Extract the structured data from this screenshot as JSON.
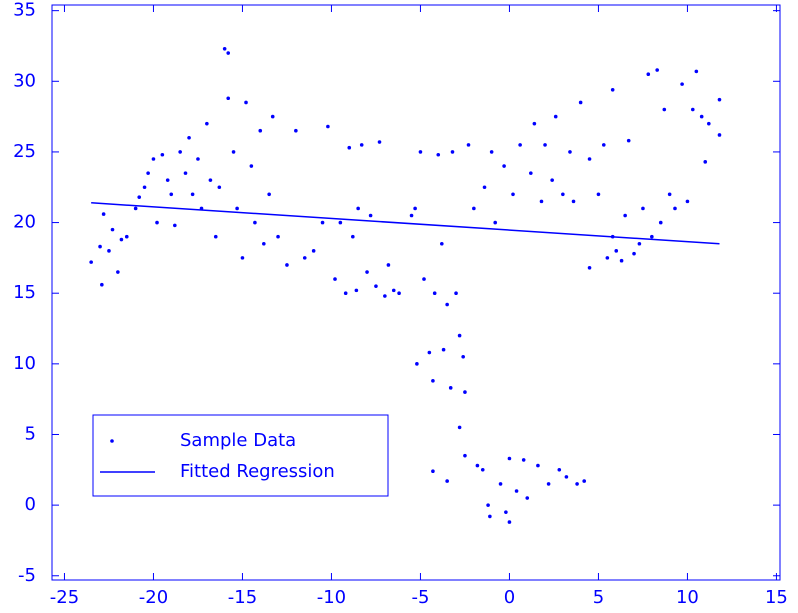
{
  "chart_data": {
    "type": "scatter",
    "xlim": [
      -25.7,
      15.2
    ],
    "ylim": [
      -5.3,
      35.4
    ],
    "xticks": [
      -25,
      -20,
      -15,
      -10,
      -5,
      0,
      5,
      10,
      15
    ],
    "yticks": [
      -5,
      0,
      5,
      10,
      15,
      20,
      25,
      30,
      35
    ],
    "axis_color": "#0000ff",
    "legend": "lower left",
    "series": [
      {
        "name": "Sample Data",
        "color": "#0000ff",
        "mode": "markers",
        "x": [
          -23.5,
          -23,
          -22.9,
          -22.8,
          -22.5,
          -22.3,
          -22,
          -21.8,
          -21.5,
          -21,
          -20.8,
          -20.5,
          -20.3,
          -20,
          -19.8,
          -19.5,
          -19.2,
          -19,
          -18.8,
          -18.5,
          -18.2,
          -18,
          -17.8,
          -17.5,
          -17.3,
          -17,
          -16.8,
          -16.5,
          -16.3,
          -16,
          -15.8,
          -15.8,
          -15.5,
          -15.3,
          -15,
          -14.8,
          -14.5,
          -14.3,
          -14,
          -13.8,
          -13.5,
          -13.3,
          -13,
          -12.5,
          -12,
          -11.5,
          -11,
          -10.5,
          -10.2,
          -9.8,
          -9.5,
          -9.2,
          -9,
          -8.8,
          -8.6,
          -8.5,
          -8.3,
          -8,
          -7.8,
          -7.5,
          -7.3,
          -7,
          -6.8,
          -6.5,
          -6.2,
          -5.5,
          -5.3,
          -5.2,
          -5,
          -4.8,
          -4.5,
          -4.3,
          -4.2,
          -4,
          -3.8,
          -3.7,
          -3.5,
          -3.3,
          -3.2,
          -3,
          -2.8,
          -2.8,
          -2.6,
          -2.5,
          -2.5,
          -2.3,
          -2,
          -1.8,
          -1.5,
          -1.4,
          -1.2,
          -1.1,
          -1,
          -0.8,
          -0.5,
          -0.3,
          -0.2,
          0,
          0,
          0.2,
          0.4,
          0.6,
          0.8,
          1,
          1.2,
          1.4,
          1.6,
          1.8,
          2,
          2.2,
          2.4,
          2.6,
          2.8,
          3,
          3.2,
          3.4,
          3.6,
          3.8,
          4,
          4.2,
          4.5,
          4.5,
          5,
          5.3,
          5.5,
          5.8,
          5.8,
          6,
          6.3,
          6.5,
          6.7,
          7,
          7.3,
          7.5,
          7.8,
          8,
          8.3,
          8.5,
          8.7,
          9,
          9.3,
          9.7,
          10,
          10.3,
          10.5,
          10.8,
          11,
          11.2,
          11.8,
          11.8,
          -4.3,
          -3.5
        ],
        "y": [
          17.2,
          18.3,
          15.6,
          20.6,
          18,
          19.5,
          16.5,
          18.8,
          19,
          21,
          21.8,
          22.5,
          23.5,
          24.5,
          20,
          24.8,
          23,
          22,
          19.8,
          25,
          23.5,
          26,
          22,
          24.5,
          21,
          27,
          23,
          19,
          22.5,
          32.3,
          32,
          28.8,
          25,
          21,
          17.5,
          28.5,
          24,
          20,
          26.5,
          18.5,
          22,
          27.5,
          19,
          17,
          26.5,
          17.5,
          18,
          20,
          26.8,
          16,
          20,
          15,
          25.3,
          19,
          15.2,
          21,
          25.5,
          16.5,
          20.5,
          15.5,
          25.7,
          14.8,
          17,
          15.2,
          15,
          20.5,
          21,
          10,
          25,
          16,
          10.8,
          8.8,
          15,
          24.8,
          18.5,
          11,
          14.2,
          8.3,
          25,
          15,
          12,
          5.5,
          10.5,
          8,
          3.5,
          25.5,
          21,
          2.8,
          2.5,
          22.5,
          0,
          -0.8,
          25,
          20,
          1.5,
          24,
          -0.5,
          3.3,
          -1.2,
          22,
          1,
          25.5,
          3.2,
          0.5,
          23.5,
          27,
          2.8,
          21.5,
          25.5,
          1.5,
          23,
          27.5,
          2.5,
          22,
          2,
          25,
          21.5,
          1.5,
          28.5,
          1.7,
          24.5,
          16.8,
          22,
          25.5,
          17.5,
          29.4,
          19,
          18,
          17.3,
          20.5,
          25.8,
          17.8,
          18.5,
          21,
          30.5,
          19,
          30.8,
          20,
          28,
          22,
          21,
          29.8,
          21.5,
          28,
          30.7,
          27.5,
          24.3,
          27,
          28.7,
          26.2,
          2.4,
          1.7
        ]
      },
      {
        "name": "Fitted Regression",
        "color": "#0000ff",
        "mode": "line",
        "x": [
          -23.5,
          11.8
        ],
        "y": [
          21.4,
          18.5
        ]
      }
    ]
  }
}
